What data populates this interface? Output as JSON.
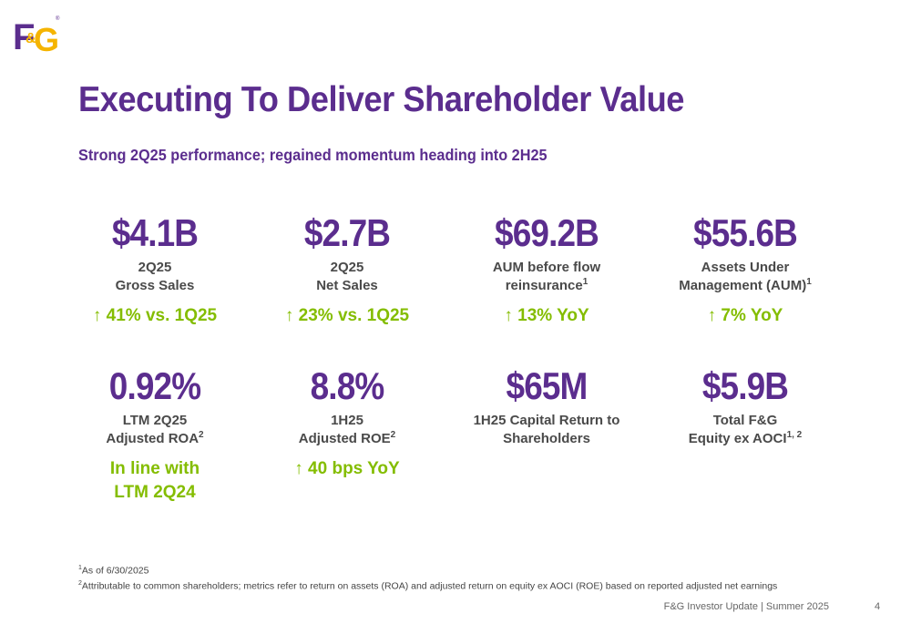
{
  "logo": {
    "text": "F&G",
    "colors": {
      "purple": "#5b2d8e",
      "gold": "#f5b400"
    }
  },
  "title": "Executing To Deliver Shareholder Value",
  "subtitle": "Strong 2Q25 performance; regained momentum heading into 2H25",
  "metrics": [
    {
      "value": "$4.1B",
      "label": "2Q25\nGross Sales",
      "sup": "",
      "change": "↑ 41% vs. 1Q25"
    },
    {
      "value": "$2.7B",
      "label": "2Q25\nNet Sales",
      "sup": "",
      "change": "↑ 23% vs. 1Q25"
    },
    {
      "value": "$69.2B",
      "label": "AUM before flow\nreinsurance",
      "sup": "1",
      "change": "↑ 13% YoY"
    },
    {
      "value": "$55.6B",
      "label": "Assets Under\nManagement (AUM)",
      "sup": "1",
      "change": "↑ 7% YoY"
    },
    {
      "value": "0.92%",
      "label": "LTM 2Q25\nAdjusted ROA",
      "sup": "2",
      "change": "In line with\nLTM 2Q24"
    },
    {
      "value": "8.8%",
      "label": "1H25\nAdjusted ROE",
      "sup": "2",
      "change": "↑ 40 bps YoY"
    },
    {
      "value": "$65M",
      "label": "1H25 Capital Return to\nShareholders",
      "sup": "",
      "change": ""
    },
    {
      "value": "$5.9B",
      "label": "Total F&G\nEquity ex AOCI",
      "sup": "1, 2",
      "change": ""
    }
  ],
  "footnotes": [
    {
      "num": "1",
      "text": "As of 6/30/2025"
    },
    {
      "num": "2",
      "text": "Attributable to common shareholders; metrics refer to return on assets (ROA) and adjusted return on equity ex AOCI (ROE) based on reported adjusted net earnings"
    }
  ],
  "footer": "F&G Investor Update | Summer 2025",
  "page_number": "4",
  "colors": {
    "title": "#5b2d8e",
    "label": "#4a4a4a",
    "change": "#84bd00"
  }
}
